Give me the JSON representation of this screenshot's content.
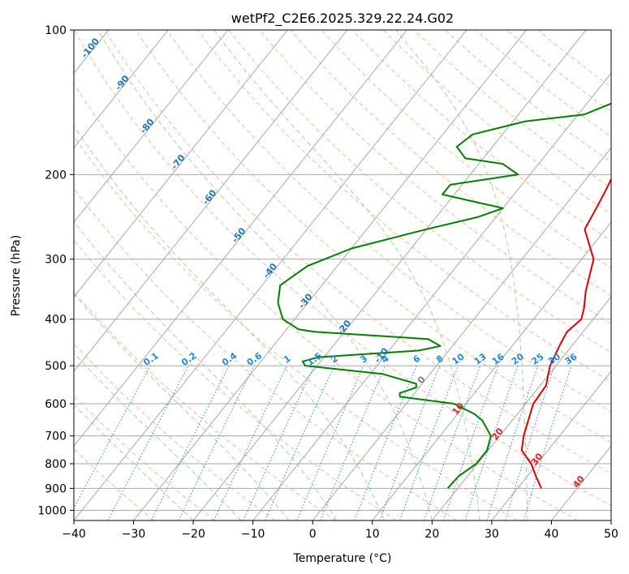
{
  "chart_data": {
    "type": "line",
    "title": "wetPf2_C2E6.2025.329.22.24.G02",
    "xlabel": "Temperature (°C)",
    "ylabel": "Pressure (hPa)",
    "xlim": [
      -40,
      50
    ],
    "ylim": [
      1050,
      100
    ],
    "y_scale": "log",
    "grid": true,
    "x_ticks": [
      -40,
      -30,
      -20,
      -10,
      0,
      10,
      20,
      30,
      40,
      50
    ],
    "y_ticks": [
      100,
      200,
      300,
      400,
      500,
      600,
      700,
      800,
      900,
      1000
    ],
    "series": [
      {
        "color": "#e00000",
        "points": [
          [
            34,
            900
          ],
          [
            31.5,
            850
          ],
          [
            29,
            800
          ],
          [
            25.6,
            750
          ],
          [
            24,
            700
          ],
          [
            22.7,
            650
          ],
          [
            21.3,
            600
          ],
          [
            21,
            550
          ],
          [
            19,
            500
          ],
          [
            17.8,
            450
          ],
          [
            17.3,
            425
          ],
          [
            18,
            400
          ],
          [
            17,
            380
          ],
          [
            15,
            350
          ],
          [
            12,
            300
          ],
          [
            6.5,
            260
          ],
          [
            5.8,
            240
          ],
          [
            5,
            220
          ],
          [
            4,
            200
          ],
          [
            3,
            180
          ],
          [
            1.7,
            165
          ],
          [
            1.5,
            150
          ],
          [
            1.8,
            130
          ],
          [
            2.2,
            115
          ],
          [
            1.2,
            105
          ],
          [
            0,
            100
          ]
        ]
      },
      {
        "color": "#008000",
        "points": [
          [
            18.3,
            900
          ],
          [
            18.5,
            850
          ],
          [
            19.8,
            800
          ],
          [
            19.8,
            750
          ],
          [
            18.5,
            700
          ],
          [
            15,
            650
          ],
          [
            12.8,
            630
          ],
          [
            8,
            600
          ],
          [
            -2,
            580
          ],
          [
            -2.5,
            570
          ],
          [
            -0.5,
            555
          ],
          [
            -1,
            545
          ],
          [
            -8,
            520
          ],
          [
            -22,
            500
          ],
          [
            -23,
            490
          ],
          [
            -21,
            480
          ],
          [
            -5,
            465
          ],
          [
            -2,
            455
          ],
          [
            -5,
            440
          ],
          [
            -25,
            425
          ],
          [
            -28,
            420
          ],
          [
            -32,
            400
          ],
          [
            -35,
            370
          ],
          [
            -37,
            340
          ],
          [
            -35,
            310
          ],
          [
            -30,
            285
          ],
          [
            -20,
            260
          ],
          [
            -13,
            245
          ],
          [
            -10,
            235
          ],
          [
            -22,
            220
          ],
          [
            -22,
            210
          ],
          [
            -12,
            200
          ],
          [
            -16,
            190
          ],
          [
            -23,
            185
          ],
          [
            -26,
            175
          ],
          [
            -25,
            165
          ],
          [
            -18,
            155
          ],
          [
            -9,
            150
          ],
          [
            -5,
            140
          ],
          [
            -2,
            120
          ],
          [
            -0.5,
            110
          ],
          [
            -0.5,
            100
          ]
        ]
      }
    ],
    "dry_adiabats_label": "",
    "isotherms_labels": [
      "-100",
      "-90",
      "-80",
      "-70",
      "-60",
      "-50",
      "-40",
      "-30",
      "-20",
      "-10"
    ],
    "isotherm_lower_labels": [
      "0",
      "10",
      "20",
      "30",
      "40"
    ],
    "mixing_ratio_labels": [
      "0.1",
      "0.2",
      "0.4",
      "0.6",
      "1",
      "1.5",
      "2",
      "3",
      "4",
      "6",
      "8",
      "10",
      "13",
      "16",
      "20",
      "25",
      "30",
      "36"
    ],
    "colors": {
      "isotherm": "#a8a8a8",
      "dry_adiabat": "#f4a582",
      "moist_adiabat": "#8fc98f",
      "mixing_ratio": "#1e88e5",
      "isotherm_label_upper": "#1f77b4",
      "isotherm_label_lower": "#d62728",
      "zero_label": "#808080"
    }
  }
}
